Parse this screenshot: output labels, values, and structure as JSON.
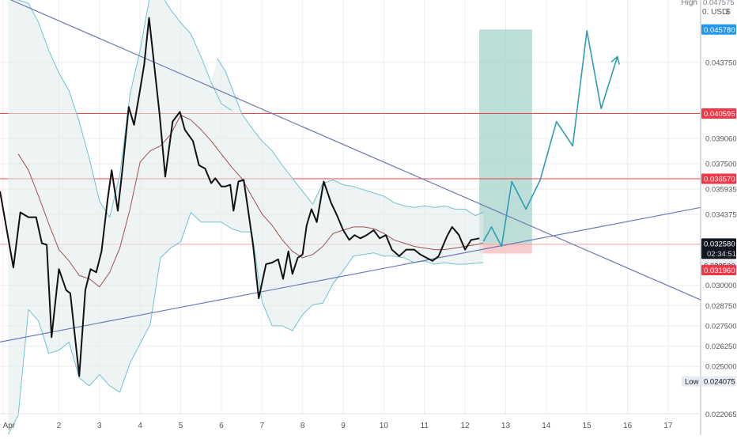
{
  "colors": {
    "background": "#ffffff",
    "grid": "#eeeeee",
    "price": "#111111",
    "band": "#6fc3cf",
    "band_fill": "#e3ecec",
    "mid": "#a05050",
    "trendline": "#6b79b6",
    "level": "#ee4444",
    "projection": "#2e9db3",
    "target_zone": "#a9d3cd",
    "stop_zone": "#f6c3c3",
    "tag_blue": "#2196f3",
    "tag_red": "#f23645",
    "tag_dark": "#131722",
    "tag_gray": "#e7ebef"
  },
  "header": {
    "high_label": "High",
    "high_value": "0.047575",
    "currency": "0. USD",
    "currency_icon": "dollar-icon"
  },
  "tags": {
    "projection_top": "0.045780",
    "resistance_upper": "0.040595",
    "resistance_lower": "0.036570",
    "last_price": "0.032580",
    "countdown": "02:34:51",
    "support_gray": "0.032530",
    "stop_red": "0.031960",
    "low_label": "Low",
    "low_value": "0.024075"
  },
  "chart_data": {
    "type": "line",
    "title": "",
    "x_unit": "day of April",
    "xlim": [
      0.55,
      17.8
    ],
    "ylim": [
      0.02208,
      0.0476
    ],
    "x_ticks": [
      {
        "x": 0.62,
        "label": "Apr"
      },
      {
        "x": 2,
        "label": "2"
      },
      {
        "x": 3,
        "label": "3"
      },
      {
        "x": 4,
        "label": "4"
      },
      {
        "x": 5,
        "label": "5"
      },
      {
        "x": 6,
        "label": "6"
      },
      {
        "x": 7,
        "label": "7"
      },
      {
        "x": 8,
        "label": "8"
      },
      {
        "x": 9,
        "label": "9"
      },
      {
        "x": 10,
        "label": "10"
      },
      {
        "x": 11,
        "label": "11"
      },
      {
        "x": 12,
        "label": "12"
      },
      {
        "x": 13,
        "label": "13"
      },
      {
        "x": 14,
        "label": "14"
      },
      {
        "x": 15,
        "label": "15"
      },
      {
        "x": 16,
        "label": "16"
      },
      {
        "x": 17,
        "label": "17"
      }
    ],
    "y_ticks": [
      {
        "value": 0.04375,
        "label": "0.043750"
      },
      {
        "value": 0.03906,
        "label": "0.039060"
      },
      {
        "value": 0.0375,
        "label": "0.037500"
      },
      {
        "value": 0.035935,
        "label": "0.035935"
      },
      {
        "value": 0.034375,
        "label": "0.034375"
      },
      {
        "value": 0.03,
        "label": "0.030000"
      },
      {
        "value": 0.02875,
        "label": "0.028750"
      },
      {
        "value": 0.0275,
        "label": "0.027500"
      },
      {
        "value": 0.02625,
        "label": "0.026250"
      },
      {
        "value": 0.025,
        "label": "0.025000"
      },
      {
        "value": 0.022065,
        "label": "0.022065"
      }
    ],
    "series": [
      {
        "role": "price",
        "points": [
          [
            0.55,
            0.0358
          ],
          [
            0.88,
            0.0311
          ],
          [
            1.05,
            0.0345
          ],
          [
            1.25,
            0.0342
          ],
          [
            1.44,
            0.0342
          ],
          [
            1.58,
            0.0326
          ],
          [
            1.7,
            0.0325
          ],
          [
            1.82,
            0.0268
          ],
          [
            2.0,
            0.031
          ],
          [
            2.18,
            0.0297
          ],
          [
            2.28,
            0.0295
          ],
          [
            2.5,
            0.0244
          ],
          [
            2.65,
            0.0297
          ],
          [
            2.78,
            0.031
          ],
          [
            2.92,
            0.0308
          ],
          [
            3.05,
            0.0321
          ],
          [
            3.2,
            0.0353
          ],
          [
            3.3,
            0.0371
          ],
          [
            3.45,
            0.0346
          ],
          [
            3.58,
            0.0375
          ],
          [
            3.72,
            0.041
          ],
          [
            3.85,
            0.0399
          ],
          [
            3.98,
            0.0418
          ],
          [
            4.1,
            0.0436
          ],
          [
            4.22,
            0.0465
          ],
          [
            4.35,
            0.0435
          ],
          [
            4.48,
            0.0405
          ],
          [
            4.62,
            0.0367
          ],
          [
            4.8,
            0.0401
          ],
          [
            4.98,
            0.0407
          ],
          [
            5.1,
            0.0396
          ],
          [
            5.3,
            0.0389
          ],
          [
            5.45,
            0.0374
          ],
          [
            5.6,
            0.0372
          ],
          [
            5.75,
            0.0363
          ],
          [
            5.85,
            0.0366
          ],
          [
            6.0,
            0.0361
          ],
          [
            6.1,
            0.0361
          ],
          [
            6.22,
            0.0362
          ],
          [
            6.3,
            0.0346
          ],
          [
            6.42,
            0.0364
          ],
          [
            6.55,
            0.0365
          ],
          [
            6.65,
            0.0348
          ],
          [
            6.78,
            0.0325
          ],
          [
            6.92,
            0.0292
          ],
          [
            7.1,
            0.0313
          ],
          [
            7.25,
            0.0314
          ],
          [
            7.4,
            0.0316
          ],
          [
            7.52,
            0.0304
          ],
          [
            7.65,
            0.0321
          ],
          [
            7.75,
            0.0307
          ],
          [
            7.88,
            0.0317
          ],
          [
            8.0,
            0.0319
          ],
          [
            8.1,
            0.0337
          ],
          [
            8.22,
            0.0347
          ],
          [
            8.35,
            0.0339
          ],
          [
            8.52,
            0.0364
          ],
          [
            8.7,
            0.0351
          ],
          [
            8.85,
            0.0343
          ],
          [
            9.0,
            0.0334
          ],
          [
            9.15,
            0.0328
          ],
          [
            9.28,
            0.0331
          ],
          [
            9.42,
            0.0329
          ],
          [
            9.58,
            0.0331
          ],
          [
            9.75,
            0.0334
          ],
          [
            9.9,
            0.0329
          ],
          [
            10.05,
            0.0331
          ],
          [
            10.2,
            0.0322
          ],
          [
            10.38,
            0.0318
          ],
          [
            10.55,
            0.0322
          ],
          [
            10.75,
            0.0322
          ],
          [
            10.9,
            0.0319
          ],
          [
            11.05,
            0.0317
          ],
          [
            11.2,
            0.0315
          ],
          [
            11.35,
            0.0318
          ],
          [
            11.55,
            0.033
          ],
          [
            11.68,
            0.0336
          ],
          [
            11.85,
            0.0331
          ],
          [
            12.0,
            0.0322
          ],
          [
            12.15,
            0.0328
          ],
          [
            12.35,
            0.0329
          ]
        ]
      },
      {
        "role": "upper-band",
        "points": [
          [
            0.75,
            0.048
          ],
          [
            1.0,
            0.0476
          ],
          [
            1.25,
            0.0474
          ],
          [
            1.5,
            0.0462
          ],
          [
            1.75,
            0.0445
          ],
          [
            2.0,
            0.0431
          ],
          [
            2.25,
            0.042
          ],
          [
            2.5,
            0.0401
          ],
          [
            2.75,
            0.0378
          ],
          [
            3.0,
            0.0352
          ],
          [
            3.25,
            0.0342
          ],
          [
            3.5,
            0.0368
          ],
          [
            3.75,
            0.0418
          ],
          [
            4.0,
            0.0445
          ],
          [
            4.25,
            0.048
          ],
          [
            4.5,
            0.048
          ],
          [
            4.75,
            0.047
          ],
          [
            5.0,
            0.0462
          ],
          [
            5.25,
            0.0455
          ],
          [
            5.5,
            0.0441
          ],
          [
            5.75,
            0.0425
          ],
          [
            6.0,
            0.0412
          ],
          [
            6.25,
            0.0408
          ]
        ]
      },
      {
        "role": "upper-band",
        "points": [
          [
            5.9,
            0.044
          ],
          [
            6.1,
            0.0432
          ],
          [
            6.3,
            0.0419
          ],
          [
            6.5,
            0.0406
          ],
          [
            6.75,
            0.0397
          ],
          [
            7.0,
            0.0389
          ],
          [
            7.25,
            0.0383
          ],
          [
            7.5,
            0.0374
          ],
          [
            7.75,
            0.0366
          ],
          [
            8.0,
            0.0358
          ],
          [
            8.25,
            0.035
          ],
          [
            8.5,
            0.0363
          ],
          [
            8.75,
            0.0365
          ],
          [
            9.0,
            0.0362
          ],
          [
            9.25,
            0.0361
          ],
          [
            9.5,
            0.0359
          ],
          [
            9.75,
            0.0357
          ],
          [
            10.0,
            0.0355
          ],
          [
            10.25,
            0.0351
          ],
          [
            10.5,
            0.0349
          ],
          [
            10.75,
            0.0348
          ],
          [
            11.0,
            0.0349
          ],
          [
            11.25,
            0.0348
          ],
          [
            11.5,
            0.0349
          ],
          [
            11.75,
            0.0347
          ],
          [
            12.0,
            0.0347
          ],
          [
            12.25,
            0.0343
          ],
          [
            12.45,
            0.0345
          ]
        ]
      },
      {
        "role": "lower-band",
        "points": [
          [
            0.75,
            0.0208
          ],
          [
            1.0,
            0.022
          ],
          [
            1.25,
            0.0285
          ],
          [
            1.5,
            0.0278
          ],
          [
            1.75,
            0.0258
          ],
          [
            2.0,
            0.026
          ],
          [
            2.25,
            0.0265
          ],
          [
            2.5,
            0.0243
          ],
          [
            2.75,
            0.0238
          ],
          [
            3.0,
            0.0245
          ],
          [
            3.25,
            0.0238
          ],
          [
            3.5,
            0.0234
          ],
          [
            3.75,
            0.0252
          ],
          [
            4.0,
            0.0264
          ],
          [
            4.25,
            0.0276
          ],
          [
            4.5,
            0.0317
          ],
          [
            4.75,
            0.0323
          ],
          [
            5.0,
            0.0327
          ],
          [
            5.25,
            0.0345
          ],
          [
            5.5,
            0.0339
          ],
          [
            5.75,
            0.0339
          ],
          [
            6.0,
            0.0339
          ],
          [
            6.25,
            0.0335
          ],
          [
            6.5,
            0.0333
          ],
          [
            6.75,
            0.0333
          ],
          [
            7.0,
            0.029
          ],
          [
            7.25,
            0.0275
          ],
          [
            7.5,
            0.0275
          ],
          [
            7.75,
            0.0272
          ],
          [
            8.0,
            0.0282
          ],
          [
            8.25,
            0.0288
          ],
          [
            8.5,
            0.0289
          ],
          [
            8.75,
            0.0301
          ],
          [
            9.0,
            0.0309
          ],
          [
            9.25,
            0.0318
          ],
          [
            9.5,
            0.0319
          ],
          [
            9.75,
            0.032
          ],
          [
            10.0,
            0.0318
          ],
          [
            10.25,
            0.0318
          ],
          [
            10.5,
            0.0317
          ],
          [
            10.75,
            0.0314
          ],
          [
            11.0,
            0.0315
          ],
          [
            11.25,
            0.0313
          ],
          [
            11.5,
            0.0314
          ],
          [
            11.75,
            0.0313
          ],
          [
            12.0,
            0.0313
          ],
          [
            12.45,
            0.0314
          ]
        ]
      },
      {
        "role": "mid-band",
        "points": [
          [
            1.0,
            0.0381
          ],
          [
            1.25,
            0.0371
          ],
          [
            1.5,
            0.0355
          ],
          [
            1.75,
            0.0338
          ],
          [
            2.0,
            0.0322
          ],
          [
            2.25,
            0.0315
          ],
          [
            2.5,
            0.0306
          ],
          [
            2.75,
            0.0304
          ],
          [
            3.0,
            0.0299
          ],
          [
            3.25,
            0.0308
          ],
          [
            3.5,
            0.0323
          ],
          [
            3.75,
            0.0347
          ],
          [
            4.0,
            0.0376
          ],
          [
            4.25,
            0.0383
          ],
          [
            4.5,
            0.0386
          ],
          [
            4.75,
            0.0393
          ],
          [
            5.0,
            0.0405
          ],
          [
            5.25,
            0.0402
          ],
          [
            5.5,
            0.0396
          ],
          [
            5.75,
            0.0389
          ],
          [
            6.0,
            0.0381
          ],
          [
            6.25,
            0.0373
          ],
          [
            6.5,
            0.0366
          ],
          [
            6.75,
            0.0355
          ],
          [
            7.0,
            0.0344
          ],
          [
            7.25,
            0.0337
          ],
          [
            7.5,
            0.0328
          ],
          [
            7.75,
            0.0321
          ],
          [
            8.0,
            0.0317
          ],
          [
            8.25,
            0.0319
          ],
          [
            8.5,
            0.0324
          ],
          [
            8.75,
            0.0332
          ],
          [
            9.0,
            0.0334
          ],
          [
            9.25,
            0.0336
          ],
          [
            9.5,
            0.0336
          ],
          [
            9.75,
            0.0335
          ],
          [
            10.0,
            0.0332
          ],
          [
            10.25,
            0.0328
          ],
          [
            10.5,
            0.0326
          ],
          [
            10.75,
            0.0324
          ],
          [
            11.0,
            0.0323
          ],
          [
            11.25,
            0.0322
          ],
          [
            11.5,
            0.0322
          ],
          [
            11.75,
            0.0323
          ],
          [
            12.0,
            0.0324
          ],
          [
            12.25,
            0.0325
          ],
          [
            12.45,
            0.0326
          ]
        ]
      },
      {
        "role": "projection",
        "points": [
          [
            12.45,
            0.0327
          ],
          [
            12.65,
            0.0336
          ],
          [
            12.9,
            0.0324
          ],
          [
            13.15,
            0.0364
          ],
          [
            13.5,
            0.0347
          ],
          [
            13.85,
            0.0365
          ],
          [
            14.25,
            0.0401
          ],
          [
            14.65,
            0.0386
          ],
          [
            15.0,
            0.0457
          ],
          [
            15.35,
            0.0409
          ],
          [
            15.75,
            0.0441
          ]
        ]
      },
      {
        "role": "trendline",
        "points": [
          [
            0.55,
            0.0479
          ],
          [
            17.8,
            0.0291
          ]
        ]
      },
      {
        "role": "trendline",
        "points": [
          [
            0.55,
            0.0265
          ],
          [
            17.8,
            0.0348
          ]
        ]
      }
    ],
    "levels": [
      {
        "value": 0.040595,
        "color": "#ee4444"
      },
      {
        "value": 0.03657,
        "color": "#ee4444"
      },
      {
        "value": 0.03253,
        "color": "#f1a0a0"
      }
    ],
    "zones": [
      {
        "role": "target",
        "x": [
          12.35,
          13.65
        ],
        "y": [
          0.03258,
          0.04578
        ]
      },
      {
        "role": "stop",
        "x": [
          12.35,
          13.65
        ],
        "y": [
          0.03196,
          0.03258
        ]
      }
    ],
    "grid": true,
    "legend": "none"
  }
}
